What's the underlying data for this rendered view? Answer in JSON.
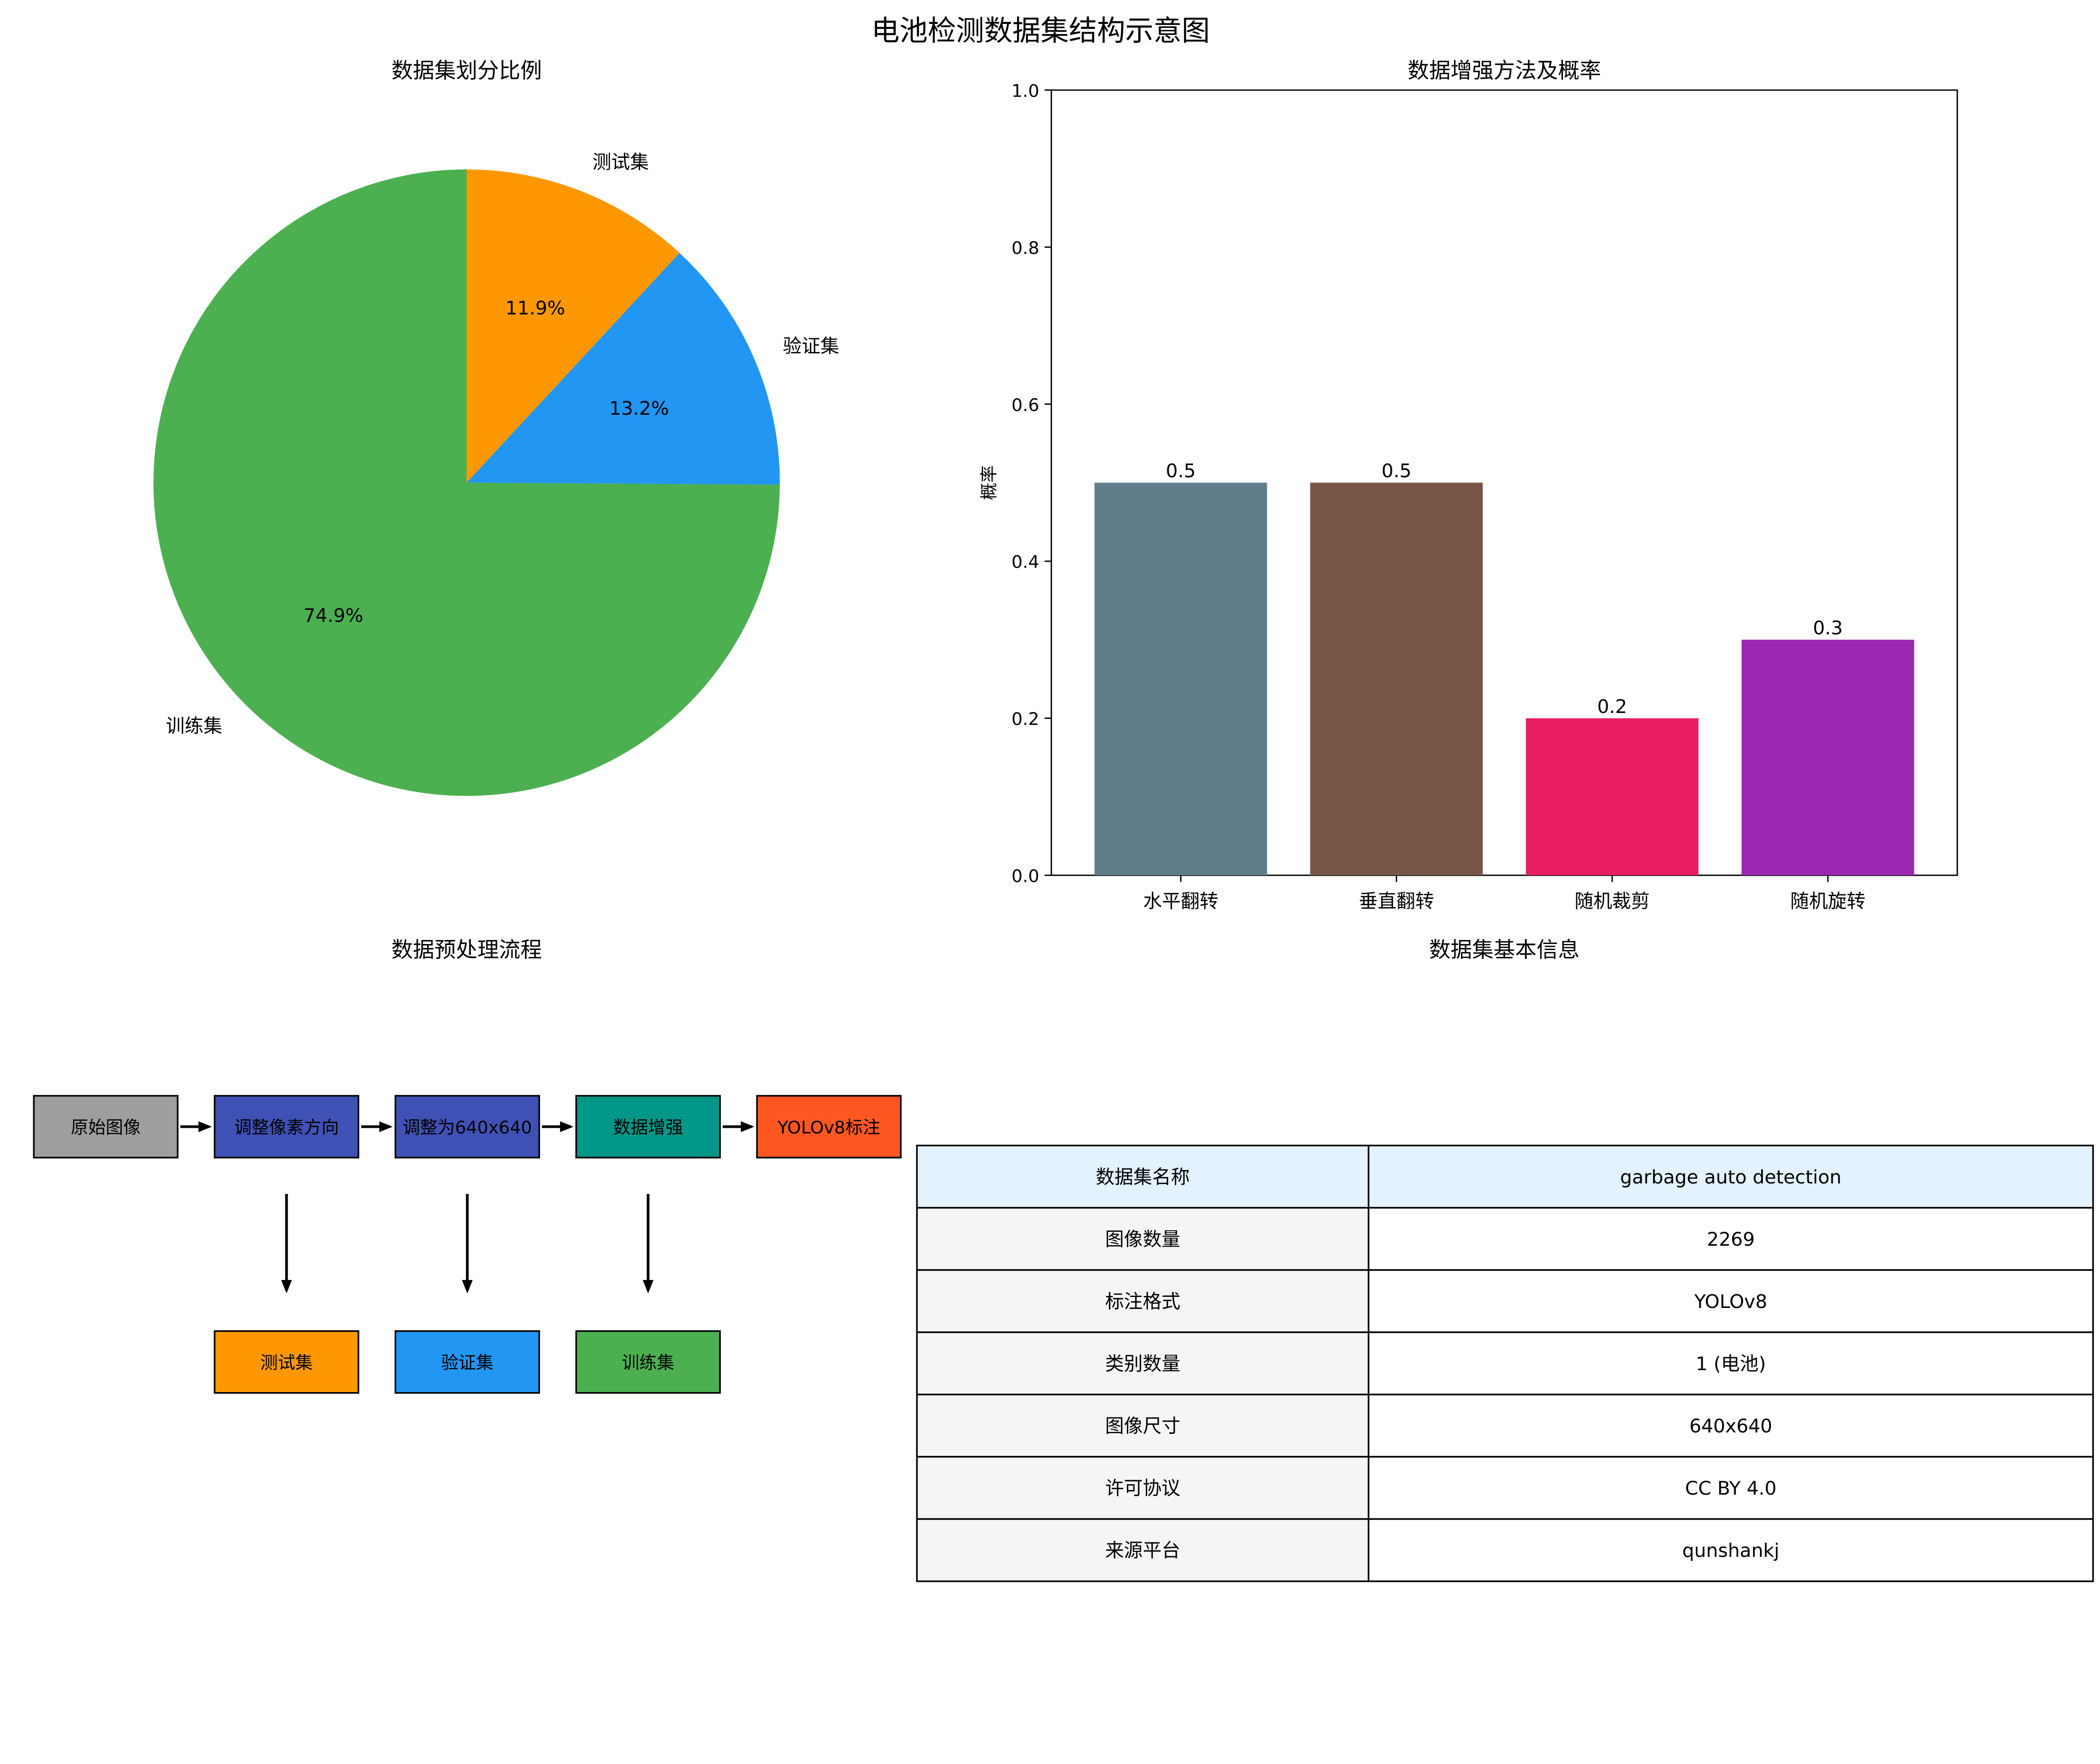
{
  "title": "电池检测数据集结构示意图",
  "chart_data": [
    {
      "type": "pie",
      "title": "数据集划分比例",
      "labels": [
        "测试集",
        "验证集",
        "训练集"
      ],
      "values": [
        11.9,
        13.2,
        74.9
      ],
      "value_labels": [
        "11.9%",
        "13.2%",
        "74.9%"
      ],
      "colors": [
        "#ff9800",
        "#2196f3",
        "#4caf50"
      ],
      "start_angle": 90,
      "direction": "clockwise"
    },
    {
      "type": "bar",
      "title": "数据增强方法及概率",
      "categories": [
        "水平翻转",
        "垂直翻转",
        "随机裁剪",
        "随机旋转"
      ],
      "values": [
        0.5,
        0.5,
        0.2,
        0.3
      ],
      "value_labels": [
        "0.5",
        "0.5",
        "0.2",
        "0.3"
      ],
      "colors": [
        "#607d8b",
        "#795548",
        "#e91e63",
        "#9c27b0"
      ],
      "ylabel": "概率",
      "ylim": [
        0,
        1.0
      ],
      "yticks": [
        "0.0",
        "0.2",
        "0.4",
        "0.6",
        "0.8",
        "1.0"
      ],
      "grid": false
    }
  ],
  "flow": {
    "title": "数据预处理流程",
    "steps": [
      {
        "label": "原始图像",
        "color": "#9e9e9e"
      },
      {
        "label": "调整像素方向",
        "color": "#3f51b5"
      },
      {
        "label": "调整为640x640",
        "color": "#3f51b5"
      },
      {
        "label": "数据增强",
        "color": "#009688"
      },
      {
        "label": "YOLOv8标注",
        "color": "#ff5722"
      }
    ],
    "outputs": [
      {
        "label": "测试集",
        "color": "#ff9800"
      },
      {
        "label": "验证集",
        "color": "#2196f3"
      },
      {
        "label": "训练集",
        "color": "#4caf50"
      }
    ]
  },
  "info_table": {
    "title": "数据集基本信息",
    "header_color": "#e3f2fd",
    "key_color": "#f5f5f5",
    "rows": [
      [
        "数据集名称",
        "garbage auto detection"
      ],
      [
        "图像数量",
        "2269"
      ],
      [
        "标注格式",
        "YOLOv8"
      ],
      [
        "类别数量",
        "1 (电池)"
      ],
      [
        "图像尺寸",
        "640x640"
      ],
      [
        "许可协议",
        "CC BY 4.0"
      ],
      [
        "来源平台",
        "qunshankj"
      ]
    ]
  }
}
